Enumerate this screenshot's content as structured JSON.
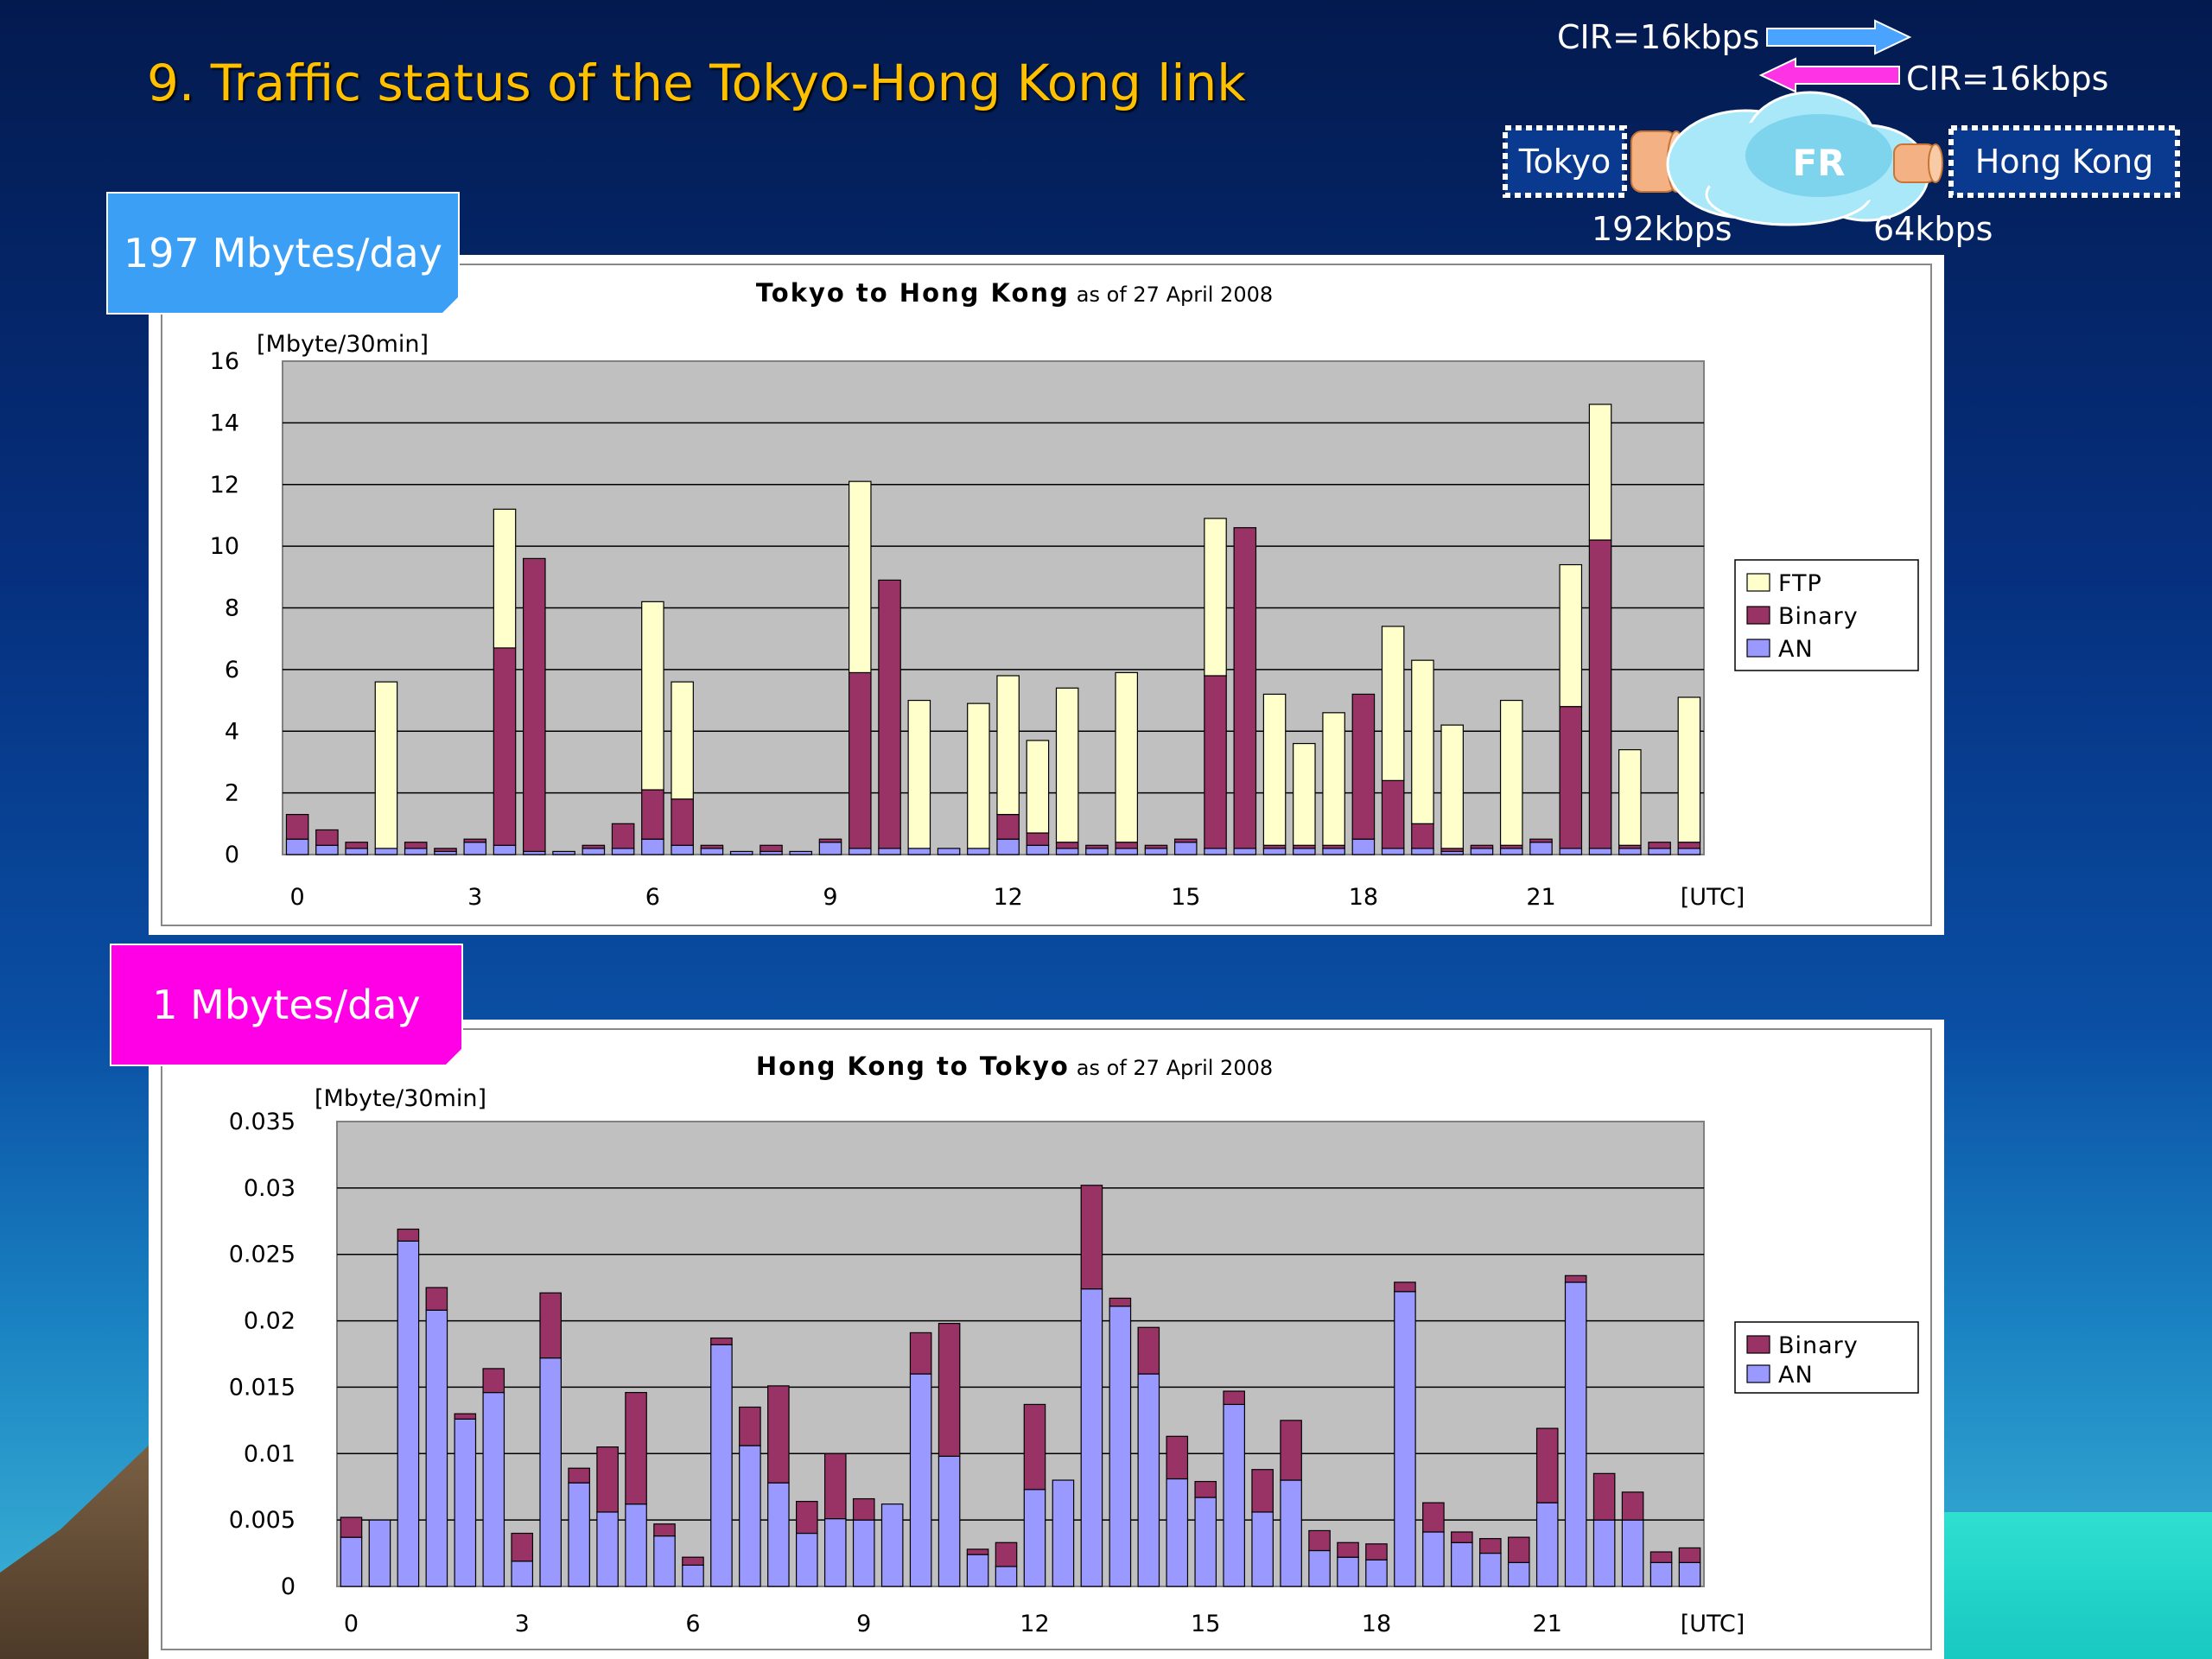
{
  "slide": {
    "title": "9.  Traffic status of the Tokyo-Hong Kong link"
  },
  "network": {
    "cir_forward": "CIR=16kbps",
    "cir_reverse": "CIR=16kbps",
    "node_left": "Tokyo",
    "node_right": "Hong Kong",
    "cloud_label": "FR",
    "speed_left": "192kbps",
    "speed_right": "64kbps",
    "colors": {
      "forward_arrow": "#4aa3ff",
      "reverse_arrow": "#ff33e6",
      "cloud": "#a8e8f8",
      "access_line": "#f4b183"
    }
  },
  "labels": {
    "top_volume": "197 Mbytes/day",
    "bottom_volume": "1 Mbytes/day",
    "colors": {
      "top": "#3a9ff5",
      "bottom": "#ff00e6"
    }
  },
  "chart_data": [
    {
      "type": "bar",
      "stacked": true,
      "title": "Tokyo to Hong Kong",
      "subtitle": "as of 27 April 2008",
      "ylabel": "[Mbyte/30min]",
      "xlabel": "[UTC]",
      "ylim": [
        0,
        16
      ],
      "yticks": [
        "0",
        "2",
        "4",
        "6",
        "8",
        "10",
        "12",
        "14",
        "16"
      ],
      "xticks": [
        "0",
        "3",
        "6",
        "9",
        "12",
        "15",
        "18",
        "21"
      ],
      "grid": true,
      "legend": "right",
      "colors": {
        "FTP": "#ffffcc",
        "Binary": "#993366",
        "AN": "#9999ff",
        "plot_bg": "#c0c0c0"
      },
      "series": [
        {
          "name": "AN",
          "values": [
            0.5,
            0.3,
            0.2,
            0.2,
            0.2,
            0.1,
            0.4,
            0.3,
            0.1,
            0.1,
            0.2,
            0.2,
            0.5,
            0.3,
            0.2,
            0.1,
            0.1,
            0.1,
            0.4,
            0.2,
            0.2,
            0.2,
            0.2,
            0.2,
            0.5,
            0.3,
            0.2,
            0.2,
            0.2,
            0.2,
            0.4,
            0.2,
            0.2,
            0.2,
            0.2,
            0.2,
            0.5,
            0.2,
            0.2,
            0.1,
            0.2,
            0.2,
            0.4,
            0.2,
            0.2,
            0.2,
            0.2,
            0.2
          ]
        },
        {
          "name": "Binary",
          "values": [
            0.8,
            0.5,
            0.2,
            0.0,
            0.2,
            0.1,
            0.1,
            6.4,
            9.5,
            0.0,
            0.1,
            0.8,
            1.6,
            1.5,
            0.1,
            0.0,
            0.2,
            0.0,
            0.1,
            5.7,
            8.7,
            0.0,
            0.0,
            0.0,
            0.8,
            0.4,
            0.2,
            0.1,
            0.2,
            0.1,
            0.1,
            5.6,
            10.4,
            0.1,
            0.1,
            0.1,
            4.7,
            2.2,
            0.8,
            0.1,
            0.1,
            0.1,
            0.1,
            4.6,
            10.0,
            0.1,
            0.2,
            0.2
          ]
        },
        {
          "name": "FTP",
          "values": [
            0.0,
            0.0,
            0.0,
            5.4,
            0.0,
            0.0,
            0.0,
            4.5,
            0.0,
            0.0,
            0.0,
            0.0,
            6.1,
            3.8,
            0.0,
            0.0,
            0.0,
            0.0,
            0.0,
            6.2,
            0.0,
            4.8,
            0.0,
            4.7,
            4.5,
            3.0,
            5.0,
            0.0,
            5.5,
            0.0,
            0.0,
            5.1,
            0.0,
            4.9,
            3.3,
            4.3,
            0.0,
            5.0,
            5.3,
            4.0,
            0.0,
            4.7,
            0.0,
            4.6,
            4.4,
            3.1,
            0.0,
            4.7
          ]
        }
      ]
    },
    {
      "type": "bar",
      "stacked": true,
      "title": "Hong Kong to Tokyo",
      "subtitle": "as of 27 April 2008",
      "ylabel": "[Mbyte/30min]",
      "xlabel": "[UTC]",
      "ylim": [
        0,
        0.035
      ],
      "yticks": [
        "0",
        "0.005",
        "0.01",
        "0.015",
        "0.02",
        "0.025",
        "0.03",
        "0.035"
      ],
      "xticks": [
        "0",
        "3",
        "6",
        "9",
        "12",
        "15",
        "18",
        "21"
      ],
      "grid": true,
      "legend": "right",
      "colors": {
        "Binary": "#993366",
        "AN": "#9999ff",
        "plot_bg": "#c0c0c0"
      },
      "series": [
        {
          "name": "AN",
          "values": [
            0.0037,
            0.005,
            0.026,
            0.0208,
            0.0126,
            0.0146,
            0.0019,
            0.0172,
            0.0078,
            0.0056,
            0.0062,
            0.0038,
            0.0016,
            0.0182,
            0.0106,
            0.0078,
            0.004,
            0.0051,
            0.005,
            0.0062,
            0.016,
            0.0098,
            0.0024,
            0.0015,
            0.0073,
            0.008,
            0.0224,
            0.0211,
            0.016,
            0.0081,
            0.0067,
            0.0137,
            0.0056,
            0.008,
            0.0027,
            0.0022,
            0.002,
            0.0222,
            0.0041,
            0.0033,
            0.0025,
            0.0018,
            0.0063,
            0.0229,
            0.005,
            0.005,
            0.0018,
            0.0018
          ]
        },
        {
          "name": "Binary",
          "values": [
            0.0015,
            0.0,
            0.0009,
            0.0017,
            0.0004,
            0.0018,
            0.0021,
            0.0049,
            0.0011,
            0.0049,
            0.0084,
            0.0009,
            0.0006,
            0.0005,
            0.0029,
            0.0073,
            0.0024,
            0.0049,
            0.0016,
            0.0,
            0.0031,
            0.01,
            0.0004,
            0.0018,
            0.0064,
            0.0,
            0.0078,
            0.0006,
            0.0035,
            0.0032,
            0.0012,
            0.001,
            0.0032,
            0.0045,
            0.0015,
            0.0011,
            0.0012,
            0.0007,
            0.0022,
            0.0008,
            0.0011,
            0.0019,
            0.0056,
            0.0005,
            0.0035,
            0.0021,
            0.0008,
            0.0011
          ]
        }
      ]
    }
  ]
}
